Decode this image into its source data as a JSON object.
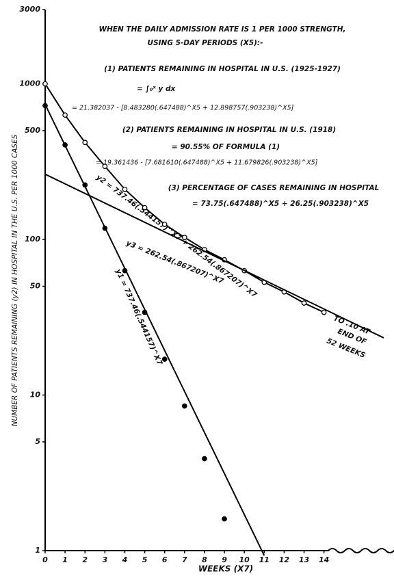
{
  "chart_data": {
    "type": "line",
    "y_label": "NUMBER OF PATIENTS REMAINING (y2) IN HOSPITAL IN THE U.S. PER 1000 CASES",
    "x_label": "WEEKS (X7)",
    "ylog": true,
    "xlim": [
      0,
      17
    ],
    "ylim": [
      1,
      3000
    ],
    "xticks": [
      0,
      1,
      2,
      3,
      4,
      5,
      6,
      7,
      8,
      9,
      10,
      11,
      12,
      13,
      14
    ],
    "yticks": [
      1,
      5,
      10,
      50,
      100,
      500,
      1000,
      3000
    ],
    "series": [
      {
        "color": "#000000",
        "marker": "open",
        "connect": true,
        "x": [
          0,
          1,
          2,
          3,
          4,
          5,
          6,
          7,
          8,
          9,
          10,
          11,
          12,
          13,
          14
        ],
        "values": [
          1000,
          630,
          420,
          295,
          210,
          160,
          125,
          103,
          86,
          74,
          63,
          53,
          46,
          39,
          34
        ]
      },
      {
        "color": "#000000",
        "marker": "filled",
        "connect": false,
        "x": [
          0,
          1,
          2,
          3,
          4,
          5,
          6,
          7,
          8,
          9
        ],
        "values": [
          724,
          405,
          224,
          118,
          63,
          34,
          17,
          8.5,
          3.9,
          1.6
        ]
      },
      {
        "color": "#000000",
        "marker": "none",
        "connect": true,
        "x": [
          0,
          11
        ],
        "values": [
          737.46,
          0.93
        ]
      },
      {
        "color": "#000000",
        "marker": "none",
        "connect": true,
        "x": [
          0,
          17
        ],
        "values": [
          262.54,
          23.3
        ]
      }
    ],
    "annotations": [
      "WHEN THE DAILY ADMISSION RATE IS 1 PER 1000 STRENGTH,",
      "USING 5-DAY PERIODS (X5):-",
      "(1) PATIENTS REMAINING IN HOSPITAL IN U.S. (1925-1927)",
      "= ∫₀ˣ y dx",
      "= 21.382037 - [8.483280(.647488)^X5 + 12.898757(.903238)^X5]",
      "(2) PATIENTS REMAINING IN HOSPITAL IN U.S. (1918)",
      "= 90.55% OF FORMULA (1)",
      "= 19.361436 - [7.681610(.647488)^X5 + 11.679826(.903238)^X5]",
      "(3) PERCENTAGE OF CASES REMAINING IN HOSPITAL",
      "= 73.75(.647488)^X5 + 26.25(.903238)^X5",
      "y2 = 737.46(.544157)^X7 + 262.54(.867207)^X7",
      "y3 = 262.54(.867207)^X7",
      "y1 = 737.46(.544157)^X7",
      "TO .10 AT",
      "END OF",
      "52 WEEKS"
    ]
  }
}
